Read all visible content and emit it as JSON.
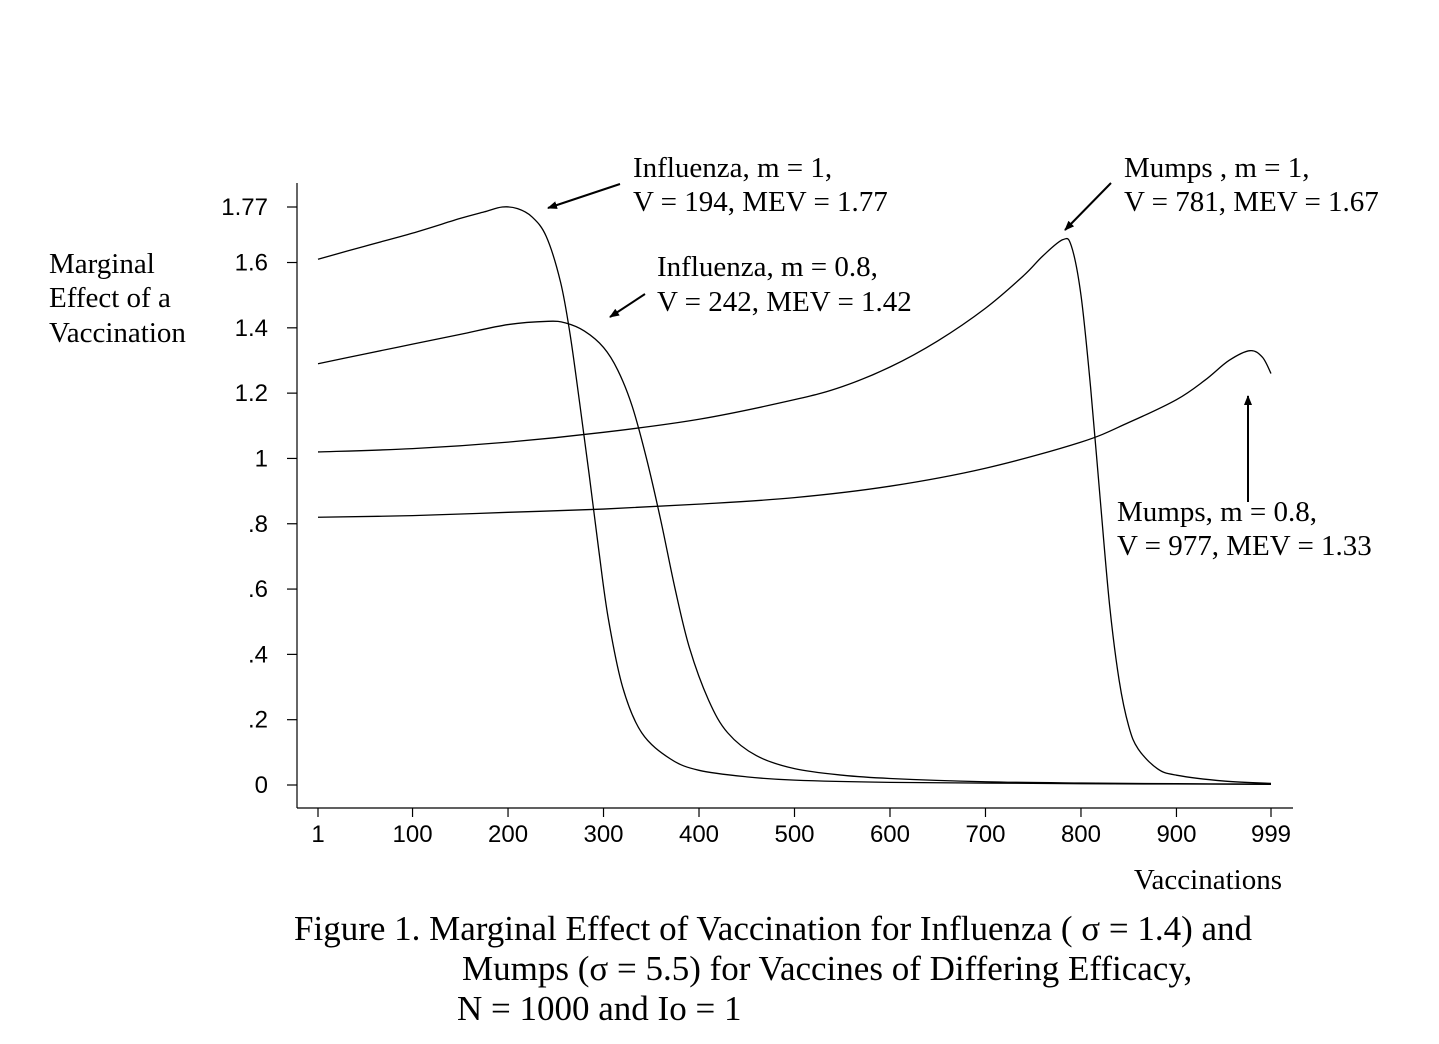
{
  "chart_data": {
    "type": "line",
    "xlabel": "Vaccinations",
    "ylabel_lines": [
      "Marginal",
      "Effect of a",
      "Vaccination"
    ],
    "xlim": [
      1,
      999
    ],
    "ylim": [
      0,
      1.77
    ],
    "x_ticks": [
      {
        "value": 1,
        "label": "1"
      },
      {
        "value": 100,
        "label": "100"
      },
      {
        "value": 200,
        "label": "200"
      },
      {
        "value": 300,
        "label": "300"
      },
      {
        "value": 400,
        "label": "400"
      },
      {
        "value": 500,
        "label": "500"
      },
      {
        "value": 600,
        "label": "600"
      },
      {
        "value": 700,
        "label": "700"
      },
      {
        "value": 800,
        "label": "800"
      },
      {
        "value": 900,
        "label": "900"
      },
      {
        "value": 999,
        "label": "999"
      }
    ],
    "y_ticks": [
      {
        "value": 0,
        "label": "0"
      },
      {
        "value": 0.2,
        "label": ".2"
      },
      {
        "value": 0.4,
        "label": ".4"
      },
      {
        "value": 0.6,
        "label": ".6"
      },
      {
        "value": 0.8,
        "label": ".8"
      },
      {
        "value": 1,
        "label": "1"
      },
      {
        "value": 1.2,
        "label": "1.2"
      },
      {
        "value": 1.4,
        "label": "1.4"
      },
      {
        "value": 1.6,
        "label": "1.6"
      },
      {
        "value": 1.77,
        "label": "1.77"
      }
    ],
    "series": [
      {
        "x": [
          1,
          50,
          100,
          150,
          175,
          194,
          210,
          225,
          240,
          255,
          265,
          275,
          285,
          295,
          305,
          320,
          340,
          370,
          400,
          450,
          500,
          600,
          700,
          800,
          900,
          999
        ],
        "y": [
          1.61,
          1.65,
          1.69,
          1.735,
          1.755,
          1.77,
          1.765,
          1.74,
          1.68,
          1.54,
          1.38,
          1.17,
          0.95,
          0.72,
          0.51,
          0.3,
          0.16,
          0.08,
          0.045,
          0.025,
          0.015,
          0.008,
          0.006,
          0.004,
          0.003,
          0.002
        ]
      },
      {
        "x": [
          1,
          50,
          100,
          150,
          200,
          242,
          260,
          280,
          300,
          315,
          330,
          345,
          360,
          375,
          390,
          410,
          430,
          460,
          500,
          550,
          600,
          700,
          800,
          900,
          999
        ],
        "y": [
          1.29,
          1.32,
          1.35,
          1.38,
          1.41,
          1.42,
          1.415,
          1.39,
          1.34,
          1.27,
          1.16,
          1.0,
          0.81,
          0.6,
          0.42,
          0.26,
          0.16,
          0.09,
          0.05,
          0.03,
          0.02,
          0.01,
          0.006,
          0.004,
          0.003
        ]
      },
      {
        "x": [
          1,
          100,
          200,
          300,
          400,
          500,
          550,
          600,
          650,
          700,
          740,
          760,
          781,
          790,
          800,
          810,
          820,
          830,
          840,
          850,
          860,
          880,
          900,
          950,
          999
        ],
        "y": [
          1.02,
          1.03,
          1.05,
          1.08,
          1.12,
          1.18,
          1.22,
          1.28,
          1.36,
          1.46,
          1.56,
          1.62,
          1.67,
          1.65,
          1.5,
          1.22,
          0.88,
          0.55,
          0.32,
          0.18,
          0.11,
          0.05,
          0.03,
          0.012,
          0.005
        ]
      },
      {
        "x": [
          1,
          100,
          200,
          300,
          400,
          500,
          600,
          700,
          800,
          850,
          900,
          930,
          955,
          977,
          990,
          999
        ],
        "y": [
          0.82,
          0.825,
          0.835,
          0.845,
          0.86,
          0.88,
          0.915,
          0.97,
          1.05,
          1.11,
          1.18,
          1.24,
          1.3,
          1.33,
          1.31,
          1.26
        ]
      }
    ],
    "annotations": [
      {
        "lines": [
          "Influenza, m = 1,",
          "V = 194, MEV = 1.77"
        ]
      },
      {
        "lines": [
          "Influenza, m = 0.8,",
          "V = 242, MEV = 1.42"
        ]
      },
      {
        "lines": [
          "Mumps , m = 1,",
          "V = 781, MEV = 1.67"
        ]
      },
      {
        "lines": [
          "Mumps, m = 0.8,",
          "V = 977, MEV = 1.33"
        ]
      }
    ],
    "caption_lines": [
      "Figure 1.  Marginal Effect of Vaccination for Influenza ( σ = 1.4) and",
      "Mumps (σ = 5.5) for Vaccines of Differing Efficacy,",
      "N = 1000 and Io = 1"
    ]
  }
}
